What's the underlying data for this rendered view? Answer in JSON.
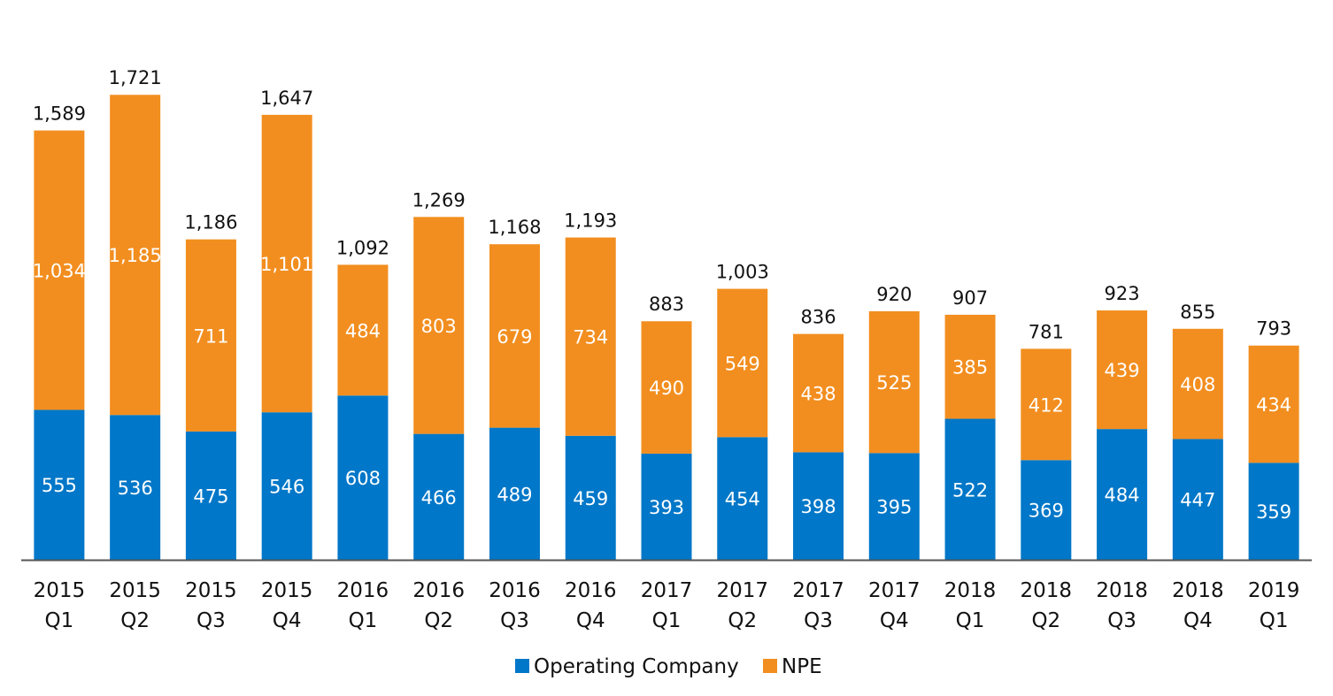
{
  "chart_data": {
    "type": "bar",
    "stacked": true,
    "categories": [
      [
        "2015",
        "Q1"
      ],
      [
        "2015",
        "Q2"
      ],
      [
        "2015",
        "Q3"
      ],
      [
        "2015",
        "Q4"
      ],
      [
        "2016",
        "Q1"
      ],
      [
        "2016",
        "Q2"
      ],
      [
        "2016",
        "Q3"
      ],
      [
        "2016",
        "Q4"
      ],
      [
        "2017",
        "Q1"
      ],
      [
        "2017",
        "Q2"
      ],
      [
        "2017",
        "Q3"
      ],
      [
        "2017",
        "Q4"
      ],
      [
        "2018",
        "Q1"
      ],
      [
        "2018",
        "Q2"
      ],
      [
        "2018",
        "Q3"
      ],
      [
        "2018",
        "Q4"
      ],
      [
        "2019",
        "Q1"
      ]
    ],
    "series": [
      {
        "name": "Operating Company",
        "color": "#0077c8",
        "values": [
          555,
          536,
          475,
          546,
          608,
          466,
          489,
          459,
          393,
          454,
          398,
          395,
          522,
          369,
          484,
          447,
          359
        ],
        "labels": [
          "555",
          "536",
          "475",
          "546",
          "608",
          "466",
          "489",
          "459",
          "393",
          "454",
          "398",
          "395",
          "522",
          "369",
          "484",
          "447",
          "359"
        ]
      },
      {
        "name": "NPE",
        "color": "#f28e1f",
        "values": [
          1034,
          1185,
          711,
          1101,
          484,
          803,
          679,
          734,
          490,
          549,
          438,
          525,
          385,
          412,
          439,
          408,
          434
        ],
        "labels": [
          "1,034",
          "1,185",
          "711",
          "1,101",
          "484",
          "803",
          "679",
          "734",
          "490",
          "549",
          "438",
          "525",
          "385",
          "412",
          "439",
          "408",
          "434"
        ]
      }
    ],
    "totals": [
      1589,
      1721,
      1186,
      1647,
      1092,
      1269,
      1168,
      1193,
      883,
      1003,
      836,
      920,
      907,
      781,
      923,
      855,
      793
    ],
    "total_labels": [
      "1,589",
      "1,721",
      "1,186",
      "1,647",
      "1,092",
      "1,269",
      "1,168",
      "1,193",
      "883",
      "1,003",
      "836",
      "920",
      "907",
      "781",
      "923",
      "855",
      "793"
    ],
    "ylim": [
      0,
      1745
    ],
    "grid": false,
    "legend_position": "bottom-center",
    "axis_color": "#555555"
  }
}
